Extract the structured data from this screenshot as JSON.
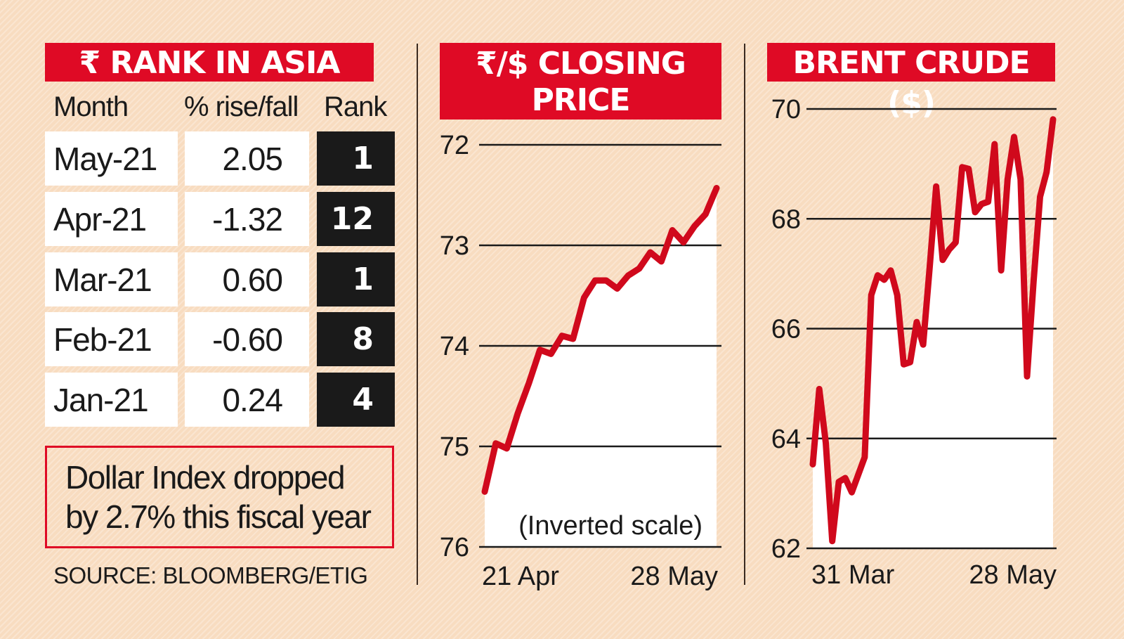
{
  "rank_table": {
    "title": "₹ RANK IN ASIA",
    "columns": [
      "Month",
      "% rise/fall",
      "Rank"
    ],
    "rows": [
      {
        "month": "May-21",
        "change": "2.05",
        "rank": "1"
      },
      {
        "month": "Apr-21",
        "change": "-1.32",
        "rank": "12"
      },
      {
        "month": "Mar-21",
        "change": "0.60",
        "rank": "1"
      },
      {
        "month": "Feb-21",
        "change": "-0.60",
        "rank": "8"
      },
      {
        "month": "Jan-21",
        "change": "0.24",
        "rank": "4"
      }
    ],
    "note": [
      "Dollar Index dropped",
      "by 2.7% this fiscal year"
    ],
    "source": "SOURCE: BLOOMBERG/ETIG"
  },
  "colors": {
    "accent": "#df0a25",
    "line": "#d0091c",
    "background": "#f8dcc0",
    "rank_cell": "#1a1a1a"
  },
  "chart_data": [
    {
      "type": "area",
      "title": [
        "₹/$ CLOSING",
        "PRICE"
      ],
      "annotation": "(Inverted scale)",
      "y_inverted": true,
      "ylim": [
        72,
        76
      ],
      "y_ticks": [
        "72",
        "73",
        "74",
        "75",
        "76"
      ],
      "x_ticks": [
        "21 Apr",
        "28 May"
      ],
      "grid": true,
      "values": [
        75.45,
        74.97,
        75.02,
        74.67,
        74.37,
        74.04,
        74.08,
        73.9,
        73.93,
        73.52,
        73.35,
        73.35,
        73.43,
        73.3,
        73.23,
        73.07,
        73.16,
        72.85,
        72.97,
        72.81,
        72.69,
        72.43
      ]
    },
    {
      "type": "area",
      "title": "BRENT CRUDE ($)",
      "ylim": [
        62,
        70
      ],
      "y_ticks": [
        "62",
        "64",
        "66",
        "68",
        "70"
      ],
      "x_ticks": [
        "31 Mar",
        "28 May"
      ],
      "grid": true,
      "values": [
        63.53,
        64.9,
        63.92,
        62.13,
        63.21,
        63.28,
        63.02,
        63.34,
        63.66,
        66.61,
        66.97,
        66.89,
        67.06,
        66.61,
        65.35,
        65.39,
        66.12,
        65.71,
        67.12,
        68.59,
        67.25,
        67.44,
        67.57,
        68.94,
        68.91,
        68.12,
        68.27,
        68.31,
        69.36,
        67.06,
        68.72,
        69.49,
        68.72,
        65.13,
        66.86,
        68.4,
        68.85,
        69.81
      ]
    }
  ]
}
